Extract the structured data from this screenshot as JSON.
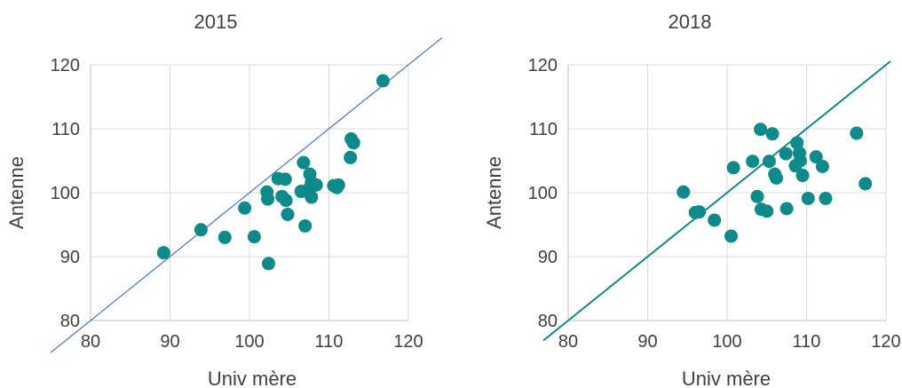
{
  "colors": {
    "marker": "#0e8a8a",
    "diagonal_left": "#4472c4",
    "diagonal_right": "#0e8a8a",
    "grid": "#d9d9d9",
    "text": "#404040"
  },
  "chart_data": [
    {
      "type": "scatter",
      "title": "2015",
      "xlabel": "Univ mère",
      "ylabel": "Antenne",
      "xlim": [
        80,
        120
      ],
      "ylim": [
        80,
        120
      ],
      "xticks": [
        80,
        90,
        100,
        110,
        120
      ],
      "yticks": [
        80,
        90,
        100,
        110,
        120
      ],
      "grid": true,
      "reference_line": "y = x",
      "series": [
        {
          "points": [
            [
              89.2,
              90.6
            ],
            [
              93.9,
              94.2
            ],
            [
              96.9,
              93.0
            ],
            [
              99.4,
              97.6
            ],
            [
              100.6,
              93.1
            ],
            [
              102.2,
              100.1
            ],
            [
              102.3,
              99.0
            ],
            [
              102.4,
              88.9
            ],
            [
              103.6,
              102.2
            ],
            [
              104.1,
              99.4
            ],
            [
              104.5,
              102.1
            ],
            [
              104.6,
              98.8
            ],
            [
              104.8,
              96.6
            ],
            [
              106.5,
              100.2
            ],
            [
              106.8,
              104.7
            ],
            [
              107.0,
              94.8
            ],
            [
              107.4,
              100.5
            ],
            [
              107.6,
              102.9
            ],
            [
              107.8,
              101.6
            ],
            [
              107.8,
              99.3
            ],
            [
              108.4,
              101.2
            ],
            [
              110.6,
              101.1
            ],
            [
              111.0,
              100.8
            ],
            [
              111.2,
              101.2
            ],
            [
              112.7,
              105.5
            ],
            [
              112.8,
              108.4
            ],
            [
              113.1,
              107.8
            ],
            [
              116.8,
              117.5
            ]
          ]
        }
      ]
    },
    {
      "type": "scatter",
      "title": "2018",
      "xlabel": "Univ mère",
      "ylabel": "Antenne",
      "xlim": [
        80,
        120
      ],
      "ylim": [
        80,
        120
      ],
      "xticks": [
        80,
        90,
        100,
        110,
        120
      ],
      "yticks": [
        80,
        90,
        100,
        110,
        120
      ],
      "grid": true,
      "reference_line": "y = x",
      "series": [
        {
          "points": [
            [
              94.5,
              100.1
            ],
            [
              96.0,
              96.9
            ],
            [
              96.5,
              97.0
            ],
            [
              98.4,
              95.7
            ],
            [
              100.5,
              93.2
            ],
            [
              100.8,
              103.9
            ],
            [
              103.2,
              104.9
            ],
            [
              103.8,
              99.4
            ],
            [
              104.2,
              109.9
            ],
            [
              104.3,
              97.4
            ],
            [
              105.0,
              97.1
            ],
            [
              105.3,
              104.9
            ],
            [
              105.7,
              109.2
            ],
            [
              106.0,
              102.9
            ],
            [
              106.2,
              102.3
            ],
            [
              107.4,
              106.1
            ],
            [
              107.5,
              97.5
            ],
            [
              108.6,
              104.2
            ],
            [
              108.8,
              107.8
            ],
            [
              109.1,
              106.2
            ],
            [
              109.2,
              105.0
            ],
            [
              109.5,
              102.7
            ],
            [
              110.2,
              99.1
            ],
            [
              111.2,
              105.6
            ],
            [
              112.0,
              104.1
            ],
            [
              112.4,
              99.1
            ],
            [
              116.3,
              109.3
            ],
            [
              117.4,
              101.4
            ]
          ]
        }
      ]
    }
  ]
}
